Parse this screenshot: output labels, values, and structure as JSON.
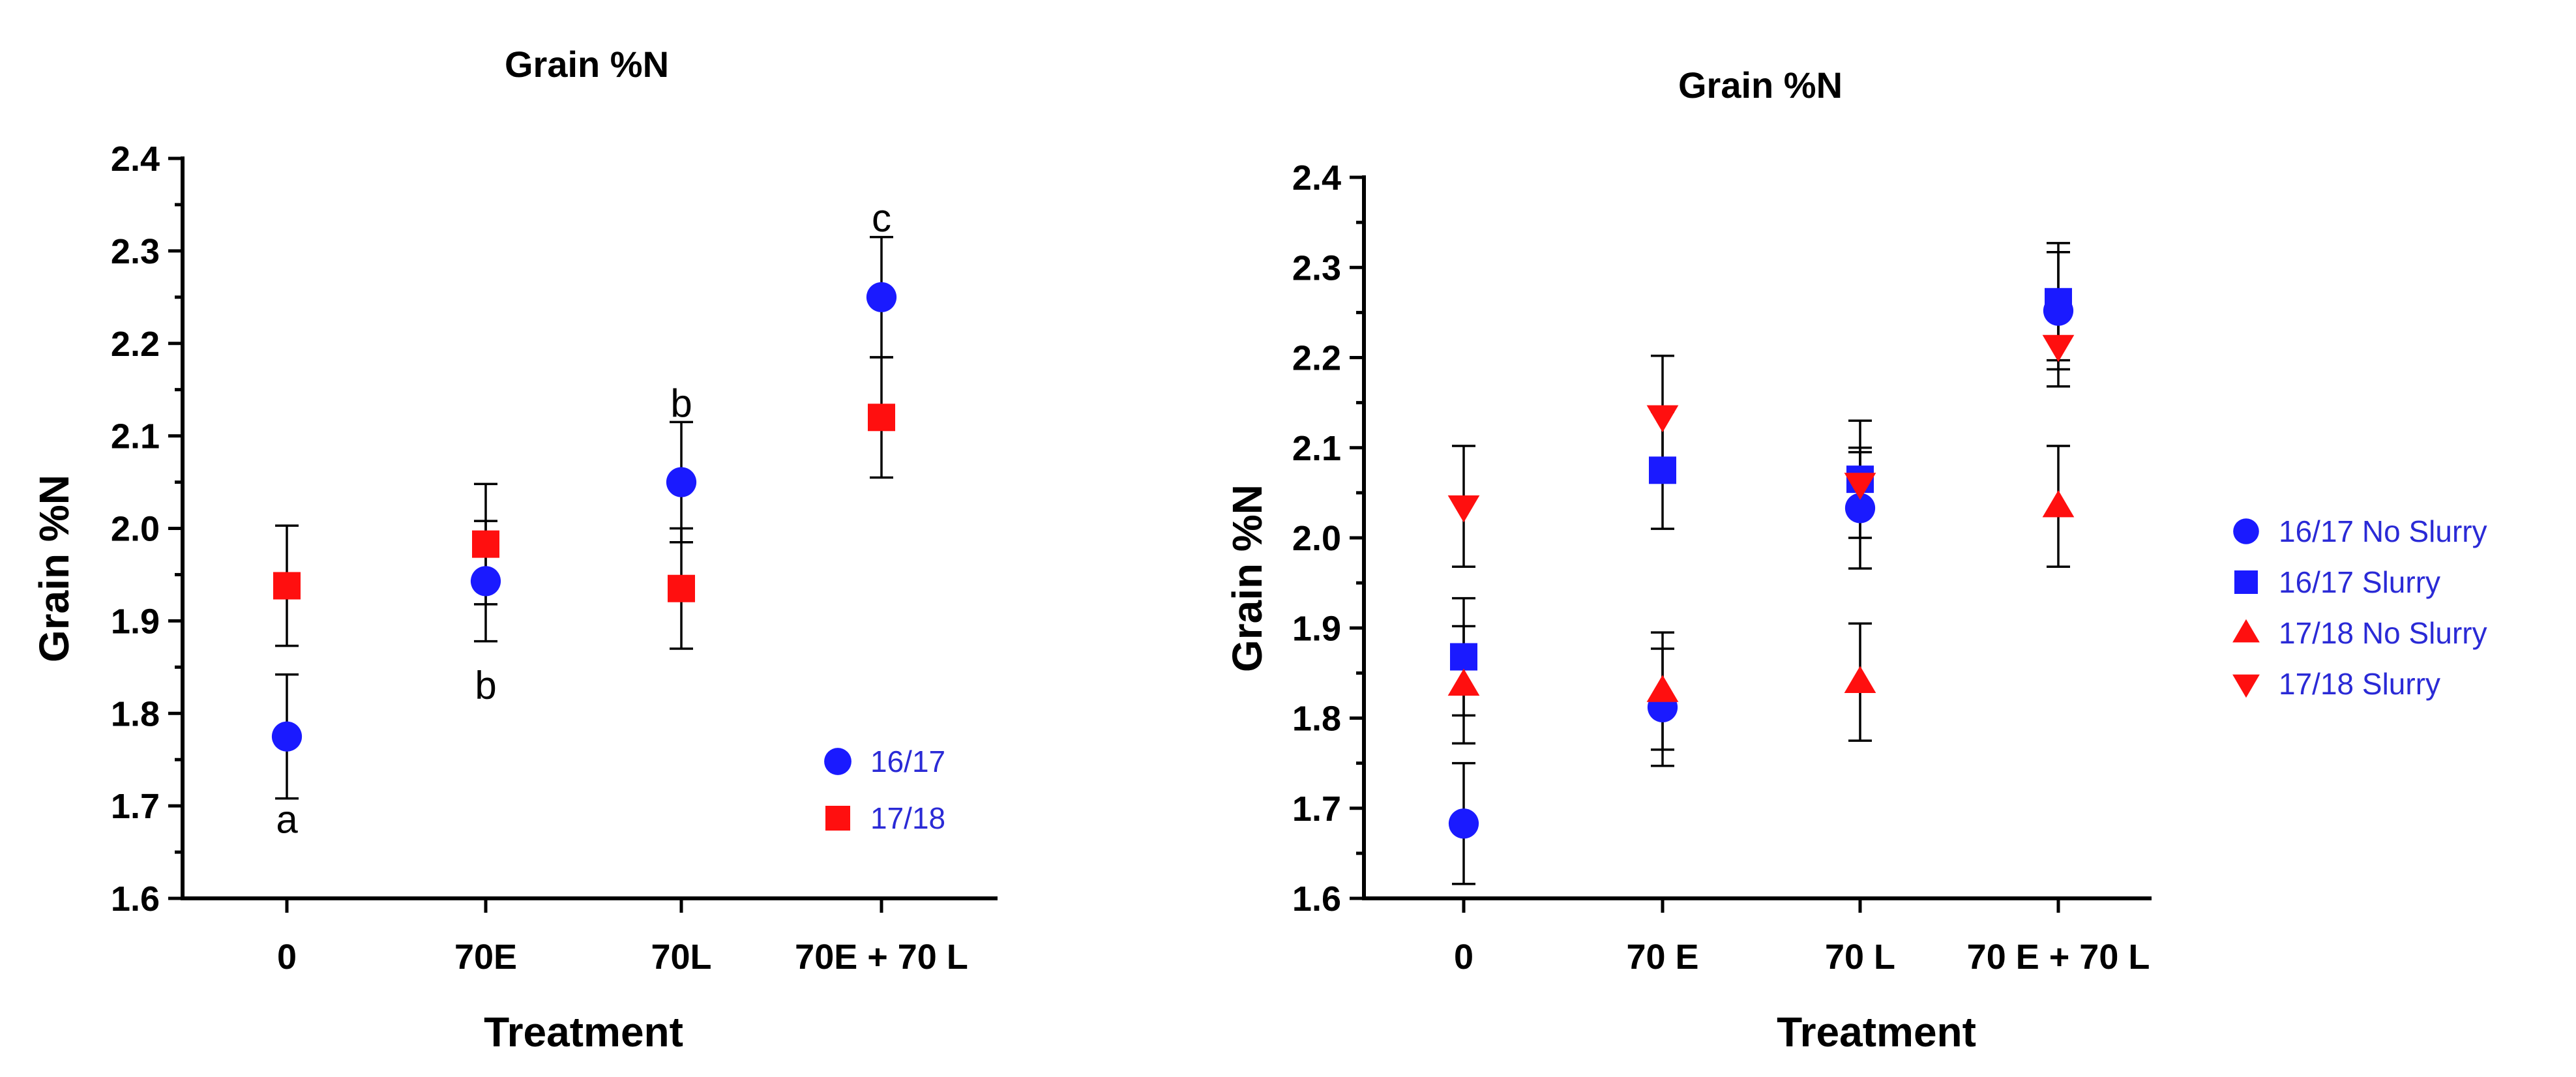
{
  "colors": {
    "blue": "#1a1aff",
    "red": "#ff0f0f",
    "legend_text": "#2a2ad6"
  },
  "chart_data": [
    {
      "type": "scatter",
      "title": "Grain %N",
      "xlabel": "Treatment",
      "ylabel": "Grain %N",
      "ylim": [
        1.6,
        2.4
      ],
      "yticks": [
        "1.6",
        "1.7",
        "1.8",
        "1.9",
        "2.0",
        "2.1",
        "2.2",
        "2.3",
        "2.4"
      ],
      "categories": [
        "0",
        "70E",
        "70L",
        "70E + 70 L"
      ],
      "legend_position": "bottom-right",
      "series": [
        {
          "name": "16/17",
          "marker": "circle",
          "color": "#1a1aff",
          "values": [
            1.775,
            1.943,
            2.05,
            2.25
          ],
          "errors": [
            0.067,
            0.065,
            0.065,
            0.065
          ]
        },
        {
          "name": "17/18",
          "marker": "square",
          "color": "#ff0f0f",
          "values": [
            1.938,
            1.983,
            1.935,
            2.12
          ],
          "errors": [
            0.065,
            0.065,
            0.065,
            0.065
          ]
        }
      ],
      "annotations": [
        {
          "text": "a",
          "category": 0,
          "y": 1.685
        },
        {
          "text": "b",
          "category": 1,
          "y": 1.83
        },
        {
          "text": "b",
          "category": 2,
          "y": 2.135
        },
        {
          "text": "c",
          "category": 3,
          "y": 2.335
        }
      ]
    },
    {
      "type": "scatter",
      "title": "Grain %N",
      "xlabel": "Treatment",
      "ylabel": "Grain %N",
      "ylim": [
        1.6,
        2.4
      ],
      "yticks": [
        "1.6",
        "1.7",
        "1.8",
        "1.9",
        "2.0",
        "2.1",
        "2.2",
        "2.3",
        "2.4"
      ],
      "categories": [
        "0",
        "70 E",
        "70 L",
        "70 E + 70 L"
      ],
      "legend_position": "right",
      "series": [
        {
          "name": "16/17 No Slurry",
          "marker": "circle",
          "color": "#1a1aff",
          "values": [
            1.683,
            1.812,
            2.033,
            2.252
          ],
          "errors": [
            0.067,
            0.065,
            0.067,
            0.065
          ]
        },
        {
          "name": "16/17 Slurry",
          "marker": "square",
          "color": "#1a1aff",
          "values": [
            1.868,
            2.075,
            2.065,
            2.262
          ],
          "errors": [
            0.065,
            0.065,
            0.065,
            0.065
          ]
        },
        {
          "name": "17/18 No Slurry",
          "marker": "triangle-up",
          "color": "#ff0f0f",
          "values": [
            1.837,
            1.83,
            1.84,
            2.035
          ],
          "errors": [
            0.065,
            0.065,
            0.065,
            0.067
          ]
        },
        {
          "name": "17/18 Slurry",
          "marker": "triangle-down",
          "color": "#ff0f0f",
          "values": [
            2.035,
            2.135,
            2.06,
            2.213
          ],
          "errors": [
            0.067,
            0.067,
            0.035,
            0.045
          ]
        }
      ]
    }
  ]
}
